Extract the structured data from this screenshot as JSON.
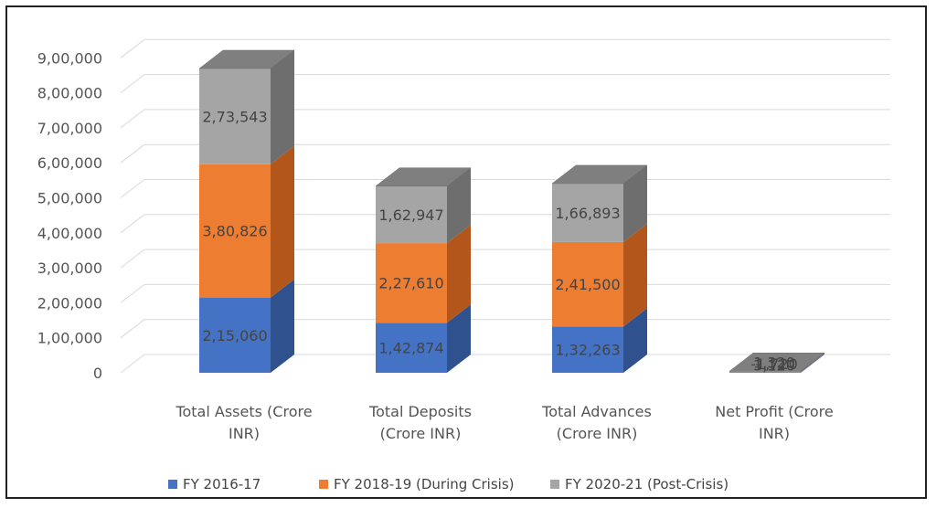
{
  "chart_data": {
    "type": "bar",
    "stacked": true,
    "three_d": true,
    "title": "",
    "xlabel": "",
    "ylabel": "",
    "ylim": [
      0,
      900000
    ],
    "yticks": [
      "0",
      "1,00,000",
      "2,00,000",
      "3,00,000",
      "4,00,000",
      "5,00,000",
      "6,00,000",
      "7,00,000",
      "8,00,000",
      "9,00,000"
    ],
    "categories": [
      [
        "Total Assets (Crore",
        "INR)"
      ],
      [
        "Total Deposits",
        "(Crore INR)"
      ],
      [
        "Total Advances",
        "(Crore INR)"
      ],
      [
        "Net Profit (Crore",
        "INR)"
      ]
    ],
    "series": [
      {
        "name": "FY 2016-17",
        "color": "#4472C4",
        "side": "#2F528F",
        "top": "#3A62AD",
        "values": [
          215060,
          142874,
          132263,
          1320
        ],
        "labels": [
          "2,15,060",
          "1,42,874",
          "1,32,263",
          "1,320"
        ]
      },
      {
        "name": "FY 2018-19 (During Crisis)",
        "color": "#ED7D31",
        "side": "#B3561B",
        "top": "#D46B25",
        "values": [
          380826,
          227610,
          241500,
          -1720
        ],
        "labels": [
          "3,80,826",
          "2,27,610",
          "2,41,500",
          "-1,720"
        ]
      },
      {
        "name": "FY 2020-21 (Post-Crisis)",
        "color": "#A5A5A5",
        "side": "#6E6E6E",
        "top": "#7F7F7F",
        "values": [
          273543,
          162947,
          166893,
          3120
        ],
        "labels": [
          "2,73,543",
          "1,62,947",
          "1,66,893",
          "3,120"
        ]
      }
    ],
    "legend_position": "bottom"
  }
}
